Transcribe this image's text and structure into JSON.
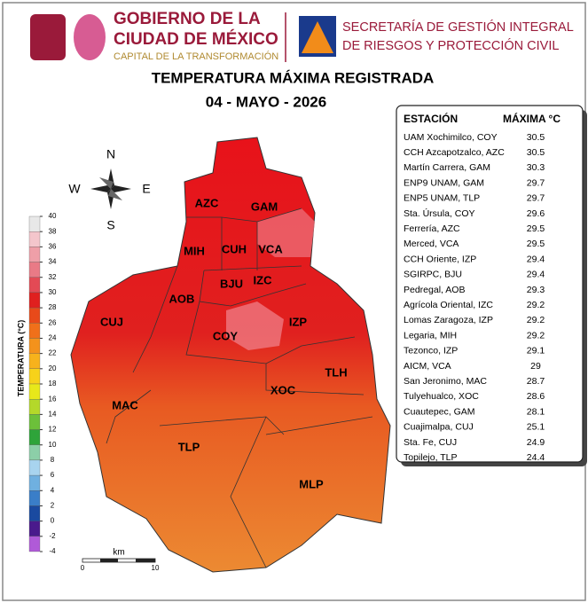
{
  "header": {
    "gov_line1": "GOBIERNO DE LA",
    "gov_line2": "CIUDAD DE MÉXICO",
    "gov_tagline": "CAPITAL DE LA TRANSFORMACIÓN",
    "sec_line1": "SECRETARÍA DE GESTIÓN INTEGRAL",
    "sec_line2": "DE RIESGOS Y PROTECCIÓN CIVIL"
  },
  "title": "TEMPERATURA MÁXIMA REGISTRADA",
  "date": "04 - MAYO - 2026",
  "table": {
    "columns": [
      "ESTACIÓN",
      "MÁXIMA °C"
    ],
    "rows": [
      [
        "UAM Xochimilco, COY",
        30.5
      ],
      [
        "CCH Azcapotzalco, AZC",
        30.5
      ],
      [
        "Martín Carrera, GAM",
        30.3
      ],
      [
        "ENP9 UNAM,  GAM",
        29.7
      ],
      [
        "ENP5 UNAM,  TLP",
        29.7
      ],
      [
        "Sta. Úrsula, COY",
        29.6
      ],
      [
        "Ferrería, AZC",
        29.5
      ],
      [
        "Merced, VCA",
        29.5
      ],
      [
        "CCH Oriente, IZP",
        29.4
      ],
      [
        "SGIRPC, BJU",
        29.4
      ],
      [
        "Pedregal, AOB",
        29.3
      ],
      [
        "Agrícola Oriental, IZC",
        29.2
      ],
      [
        "Lomas Zaragoza, IZP",
        29.2
      ],
      [
        "Legaria, MIH",
        29.2
      ],
      [
        "Tezonco, IZP",
        29.1
      ],
      [
        "AICM, VCA",
        29
      ],
      [
        "San Jeronimo, MAC",
        28.7
      ],
      [
        "Tulyehualco, XOC",
        28.6
      ],
      [
        "Cuautepec, GAM",
        28.1
      ],
      [
        "Cuajimalpa, CUJ",
        25.1
      ],
      [
        "Sta. Fe, CUJ",
        24.9
      ],
      [
        "Topilejo, TLP",
        24.4
      ]
    ]
  },
  "legend": {
    "title": "TEMPERATURA (°C)",
    "ticks": [
      40,
      38,
      36,
      34,
      32,
      30,
      28,
      26,
      24,
      22,
      20,
      18,
      16,
      14,
      12,
      10,
      8,
      6,
      4,
      2,
      0,
      -2,
      -4
    ],
    "colors": [
      "#e8e8e8",
      "#f4c6cc",
      "#ef9fa8",
      "#e97a86",
      "#e34a55",
      "#e0201f",
      "#e84a1a",
      "#f0701a",
      "#f4921c",
      "#f7b21c",
      "#f7d21a",
      "#e8e81a",
      "#b4d82a",
      "#6cc03a",
      "#2ea43a",
      "#8ccfa8",
      "#a8d4ef",
      "#6fb0e0",
      "#3a7ec8",
      "#1a4aa0",
      "#4a1a8c",
      "#b05ad8"
    ]
  },
  "compass": {
    "n": "N",
    "s": "S",
    "w": "W",
    "e": "E"
  },
  "districts": [
    "AZC",
    "GAM",
    "MIH",
    "CUH",
    "VCA",
    "BJU",
    "IZC",
    "AOB",
    "CUJ",
    "COY",
    "IZP",
    "TLH",
    "XOC",
    "MAC",
    "TLP",
    "MLP"
  ],
  "scale": {
    "unit": "km",
    "start": "0",
    "end": "10"
  }
}
